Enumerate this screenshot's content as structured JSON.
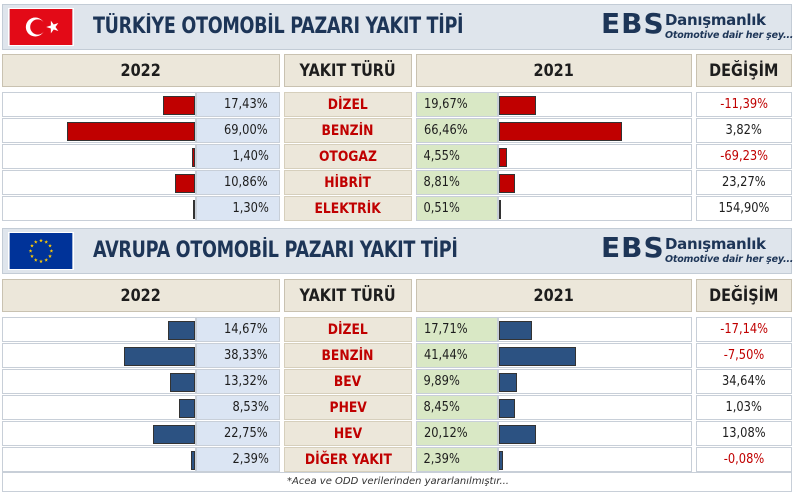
{
  "colors": {
    "turkiye_bar": "#c00000",
    "europe_bar": "#2c5282",
    "fuel_text": "#c00000",
    "negative_change": "#c00000",
    "positive_change": "#1d1d1d",
    "year2022_fill": "#dbe5f3",
    "year2021_fill": "#d9e8c5",
    "header_fill": "#ece7da",
    "title_fill": "#dfe5ec"
  },
  "logo": {
    "ebs": "EBS",
    "brand": "Danışmanlık",
    "tagline": "Otomotive dair her şey..."
  },
  "headers": {
    "year_2022": "2022",
    "fuel_type": "YAKIT TÜRÜ",
    "year_2021": "2021",
    "change": "DEĞİŞİM"
  },
  "footnote": "*Acea ve ODD verilerinden yararlanılmıştır...",
  "chart_data": [
    {
      "type": "bar",
      "title": "TÜRKİYE OTOMOBİL PAZARI YAKIT TİPİ",
      "flag_icon": "turkey-flag-icon",
      "categories": [
        "DİZEL",
        "BENZİN",
        "OTOGAZ",
        "HİBRİT",
        "ELEKTRİK"
      ],
      "series": [
        {
          "name": "2022",
          "values": [
            17.43,
            69.0,
            1.4,
            10.86,
            1.3
          ]
        },
        {
          "name": "2021",
          "values": [
            19.67,
            66.46,
            4.55,
            8.81,
            0.51
          ]
        }
      ],
      "labels_2022": [
        "17,43%",
        "69,00%",
        "1,40%",
        "10,86%",
        "1,30%"
      ],
      "labels_2021": [
        "19,67%",
        "66,46%",
        "4,55%",
        "8,81%",
        "0,51%"
      ],
      "change": [
        -11.39,
        3.82,
        -69.23,
        23.27,
        154.9
      ],
      "change_labels": [
        "-11,39%",
        "3,82%",
        "-69,23%",
        "23,27%",
        "154,90%"
      ],
      "ylim": [
        0,
        70
      ]
    },
    {
      "type": "bar",
      "title": "AVRUPA OTOMOBİL PAZARI YAKIT TİPİ",
      "flag_icon": "eu-flag-icon",
      "categories": [
        "DİZEL",
        "BENZİN",
        "BEV",
        "PHEV",
        "HEV",
        "DİĞER YAKIT"
      ],
      "series": [
        {
          "name": "2022",
          "values": [
            14.67,
            38.33,
            13.32,
            8.53,
            22.75,
            2.39
          ]
        },
        {
          "name": "2021",
          "values": [
            17.71,
            41.44,
            9.89,
            8.45,
            20.12,
            2.39
          ]
        }
      ],
      "labels_2022": [
        "14,67%",
        "38,33%",
        "13,32%",
        "8,53%",
        "22,75%",
        "2,39%"
      ],
      "labels_2021": [
        "17,71%",
        "41,44%",
        "9,89%",
        "8,45%",
        "20,12%",
        "2,39%"
      ],
      "change": [
        -17.14,
        -7.5,
        34.64,
        1.03,
        13.08,
        -0.08
      ],
      "change_labels": [
        "-17,14%",
        "-7,50%",
        "34,64%",
        "1,03%",
        "13,08%",
        "-0,08%"
      ],
      "ylim": [
        0,
        70
      ]
    }
  ]
}
